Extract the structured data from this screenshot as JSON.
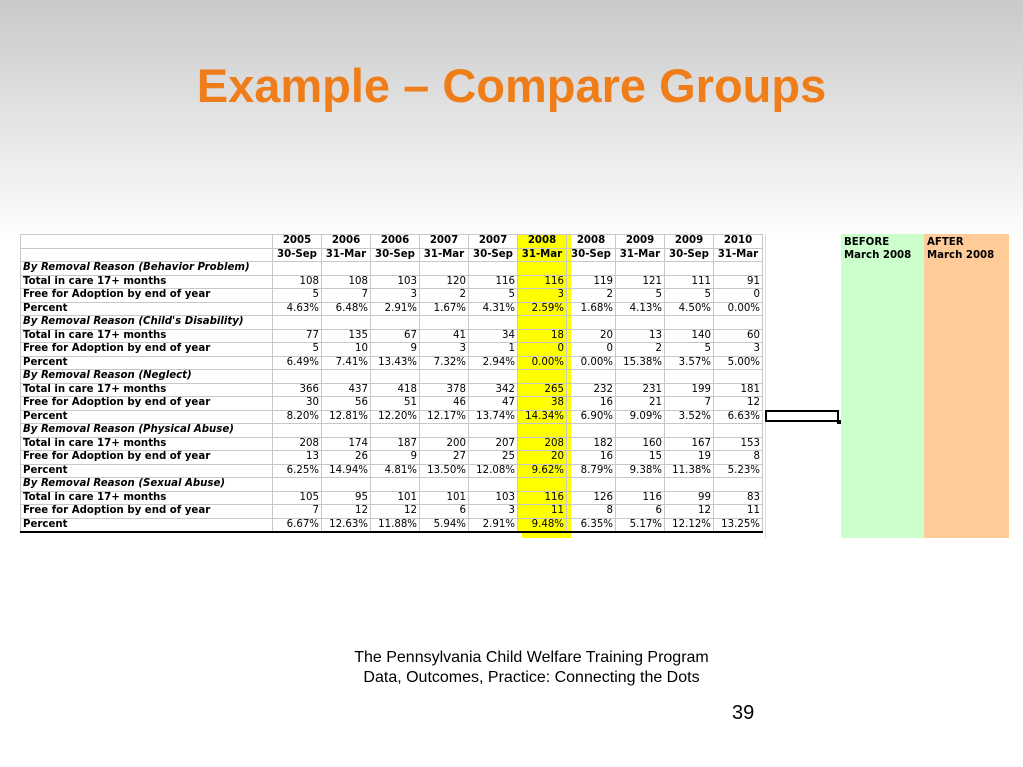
{
  "title": "Example – Compare Groups",
  "columns": [
    {
      "year": "2005",
      "date": "30-Sep"
    },
    {
      "year": "2006",
      "date": "31-Mar"
    },
    {
      "year": "2006",
      "date": "30-Sep"
    },
    {
      "year": "2007",
      "date": "31-Mar"
    },
    {
      "year": "2007",
      "date": "30-Sep"
    },
    {
      "year": "2008",
      "date": "31-Mar"
    },
    {
      "year": "2008",
      "date": "30-Sep"
    },
    {
      "year": "2009",
      "date": "31-Mar"
    },
    {
      "year": "2009",
      "date": "30-Sep"
    },
    {
      "year": "2010",
      "date": "31-Mar"
    }
  ],
  "highlight_column_index": 5,
  "before_label": {
    "line1": "BEFORE",
    "line2": "March 2008"
  },
  "after_label": {
    "line1": "AFTER",
    "line2": "March 2008"
  },
  "row_labels": {
    "total": "Total in care 17+ months",
    "free": "Free for Adoption by end of year",
    "percent": "Percent"
  },
  "sections": [
    {
      "name": "By Removal Reason (Behavior Problem)",
      "total": [
        "108",
        "108",
        "103",
        "120",
        "116",
        "116",
        "119",
        "121",
        "111",
        "91"
      ],
      "free": [
        "5",
        "7",
        "3",
        "2",
        "5",
        "3",
        "2",
        "5",
        "5",
        "0"
      ],
      "percent": [
        "4.63%",
        "6.48%",
        "2.91%",
        "1.67%",
        "4.31%",
        "2.59%",
        "1.68%",
        "4.13%",
        "4.50%",
        "0.00%"
      ]
    },
    {
      "name": "By Removal Reason (Child's Disability)",
      "total": [
        "77",
        "135",
        "67",
        "41",
        "34",
        "18",
        "20",
        "13",
        "140",
        "60"
      ],
      "free": [
        "5",
        "10",
        "9",
        "3",
        "1",
        "0",
        "0",
        "2",
        "5",
        "3"
      ],
      "percent": [
        "6.49%",
        "7.41%",
        "13.43%",
        "7.32%",
        "2.94%",
        "0.00%",
        "0.00%",
        "15.38%",
        "3.57%",
        "5.00%"
      ]
    },
    {
      "name": "By Removal Reason (Neglect)",
      "total": [
        "366",
        "437",
        "418",
        "378",
        "342",
        "265",
        "232",
        "231",
        "199",
        "181"
      ],
      "free": [
        "30",
        "56",
        "51",
        "46",
        "47",
        "38",
        "16",
        "21",
        "7",
        "12"
      ],
      "percent": [
        "8.20%",
        "12.81%",
        "12.20%",
        "12.17%",
        "13.74%",
        "14.34%",
        "6.90%",
        "9.09%",
        "3.52%",
        "6.63%"
      ]
    },
    {
      "name": "By Removal Reason (Physical Abuse)",
      "total": [
        "208",
        "174",
        "187",
        "200",
        "207",
        "208",
        "182",
        "160",
        "167",
        "153"
      ],
      "free": [
        "13",
        "26",
        "9",
        "27",
        "25",
        "20",
        "16",
        "15",
        "19",
        "8"
      ],
      "percent": [
        "6.25%",
        "14.94%",
        "4.81%",
        "13.50%",
        "12.08%",
        "9.62%",
        "8.79%",
        "9.38%",
        "11.38%",
        "5.23%"
      ]
    },
    {
      "name": "By Removal Reason (Sexual Abuse)",
      "total": [
        "105",
        "95",
        "101",
        "101",
        "103",
        "116",
        "126",
        "116",
        "99",
        "83"
      ],
      "free": [
        "7",
        "12",
        "12",
        "6",
        "3",
        "11",
        "8",
        "6",
        "12",
        "11"
      ],
      "percent": [
        "6.67%",
        "12.63%",
        "11.88%",
        "5.94%",
        "2.91%",
        "9.48%",
        "6.35%",
        "5.17%",
        "12.12%",
        "13.25%"
      ]
    }
  ],
  "footer": {
    "line1": "The Pennsylvania Child Welfare Training Program",
    "line2": "Data, Outcomes, Practice: Connecting the Dots",
    "page_number": "39"
  },
  "colors": {
    "title": "#ef7d19",
    "highlight": "#ffff00",
    "before_band": "#ccffcc",
    "after_band": "#ffcc99"
  }
}
